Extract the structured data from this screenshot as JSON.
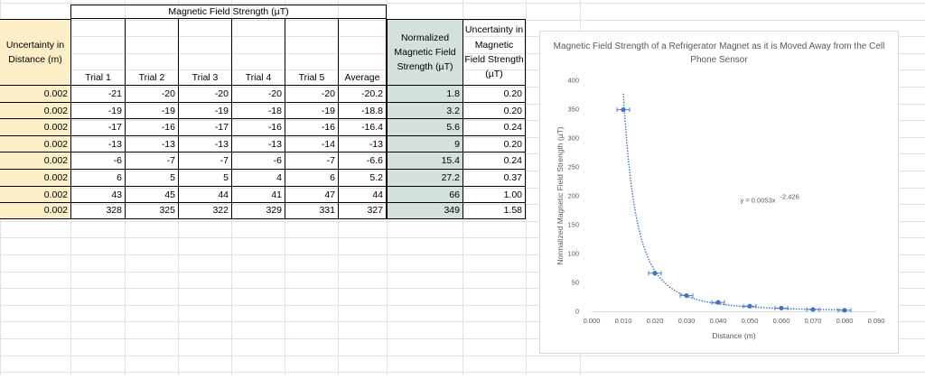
{
  "table": {
    "group_header": "Magnetic Field Strength (µT)",
    "uncertainty_distance_header": "Uncertainty in Distance (m)",
    "trial_headers": [
      "Trial 1",
      "Trial 2",
      "Trial 3",
      "Trial 4",
      "Trial 5",
      "Average"
    ],
    "normalized_header": "Normalized Magnetic Field Strength (µT)",
    "uncertainty_field_header": "Uncertainty in Magnetic Field Strength (µT)",
    "rows": [
      {
        "unc_dist": "0.002",
        "trials": [
          "-21",
          "-20",
          "-20",
          "-20",
          "-20",
          "-20.2"
        ],
        "normalized": "1.8",
        "unc_field": "0.20"
      },
      {
        "unc_dist": "0.002",
        "trials": [
          "-19",
          "-19",
          "-19",
          "-18",
          "-19",
          "-18.8"
        ],
        "normalized": "3.2",
        "unc_field": "0.20"
      },
      {
        "unc_dist": "0.002",
        "trials": [
          "-17",
          "-16",
          "-17",
          "-16",
          "-16",
          "-16.4"
        ],
        "normalized": "5.6",
        "unc_field": "0.24"
      },
      {
        "unc_dist": "0.002",
        "trials": [
          "-13",
          "-13",
          "-13",
          "-13",
          "-14",
          "-13"
        ],
        "normalized": "9",
        "unc_field": "0.20"
      },
      {
        "unc_dist": "0.002",
        "trials": [
          "-6",
          "-7",
          "-7",
          "-6",
          "-7",
          "-6.6"
        ],
        "normalized": "15.4",
        "unc_field": "0.24"
      },
      {
        "unc_dist": "0.002",
        "trials": [
          "6",
          "5",
          "5",
          "4",
          "6",
          "5.2"
        ],
        "normalized": "27.2",
        "unc_field": "0.37"
      },
      {
        "unc_dist": "0.002",
        "trials": [
          "43",
          "45",
          "44",
          "41",
          "47",
          "44"
        ],
        "normalized": "66",
        "unc_field": "1.00"
      },
      {
        "unc_dist": "0.002",
        "trials": [
          "328",
          "325",
          "322",
          "329",
          "331",
          "327"
        ],
        "normalized": "349",
        "unc_field": "1.58"
      }
    ]
  },
  "chart_data": {
    "type": "scatter",
    "title": "Magnetic Field Strength of a Refrigerator Magnet as it is Moved Away from the Cell Phone Sensor",
    "xlabel": "Distance (m)",
    "ylabel": "Normalized Magnetic Field Strength (µT)",
    "xlim": [
      0,
      0.09
    ],
    "ylim": [
      0,
      400
    ],
    "x_ticks": [
      "0.000",
      "0.010",
      "0.020",
      "0.030",
      "0.040",
      "0.050",
      "0.060",
      "0.070",
      "0.080",
      "0.090"
    ],
    "y_ticks": [
      "0",
      "50",
      "100",
      "150",
      "200",
      "250",
      "300",
      "350",
      "400"
    ],
    "series": [
      {
        "name": "Normalized Magnetic Field Strength",
        "x": [
          0.01,
          0.02,
          0.03,
          0.04,
          0.05,
          0.06,
          0.07,
          0.08
        ],
        "y": [
          349,
          66,
          27.2,
          15.4,
          9,
          5.6,
          3.2,
          1.8
        ],
        "x_error": 0.002
      }
    ],
    "trendline": {
      "type": "power",
      "coefficient": 0.0053,
      "exponent": -2.426,
      "label": "y = 0.0053x",
      "label_exponent": "-2.426"
    },
    "colors": {
      "marker": "#4472c4",
      "trendline": "#4472c4",
      "error_bar": "#4472c4"
    }
  }
}
